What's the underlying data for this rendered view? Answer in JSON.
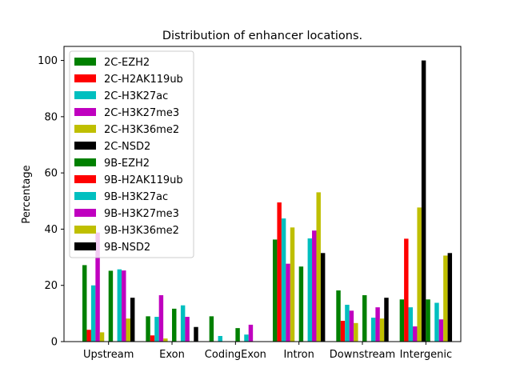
{
  "chart_data": {
    "type": "bar",
    "title": "Distribution of enhancer locations.",
    "xlabel": "",
    "ylabel": "Percentage",
    "ylim": [
      0,
      105
    ],
    "yticks": [
      0,
      20,
      40,
      60,
      80,
      100
    ],
    "categories": [
      "Upstream",
      "Exon",
      "CodingExon",
      "Intron",
      "Downstream",
      "Intergenic"
    ],
    "legend_position": "upper-left",
    "series": [
      {
        "name": "2C-EZH2",
        "color": "#008000",
        "values": [
          27.2,
          9.0,
          9.0,
          36.3,
          18.2,
          15.0
        ]
      },
      {
        "name": "2C-H2AK119ub",
        "color": "#ff0000",
        "values": [
          4.2,
          2.2,
          0,
          49.5,
          7.4,
          36.6
        ]
      },
      {
        "name": "2C-H3K27ac",
        "color": "#00bfbf",
        "values": [
          20.0,
          8.8,
          2.0,
          43.8,
          13.1,
          12.2
        ]
      },
      {
        "name": "2C-H3K27me3",
        "color": "#bf00bf",
        "values": [
          38.8,
          16.5,
          0,
          27.7,
          11.0,
          5.4
        ]
      },
      {
        "name": "2C-H3K36me2",
        "color": "#bfbf00",
        "values": [
          3.3,
          1.1,
          0,
          40.6,
          6.6,
          47.7
        ]
      },
      {
        "name": "2C-NSD2",
        "color": "#000000",
        "values": [
          0,
          0,
          0,
          0,
          0,
          100.0
        ]
      },
      {
        "name": "9B-EZH2",
        "color": "#008000",
        "values": [
          25.2,
          11.7,
          4.8,
          26.7,
          16.5,
          15.0
        ]
      },
      {
        "name": "9B-H2AK119ub",
        "color": "#ff0000",
        "values": [
          0,
          0,
          0,
          0,
          0,
          0
        ]
      },
      {
        "name": "9B-H3K27ac",
        "color": "#00bfbf",
        "values": [
          25.7,
          12.9,
          2.5,
          36.7,
          8.5,
          13.8
        ]
      },
      {
        "name": "9B-H3K27me3",
        "color": "#bf00bf",
        "values": [
          25.3,
          8.8,
          6.0,
          39.5,
          12.2,
          7.9
        ]
      },
      {
        "name": "9B-H3K36me2",
        "color": "#bfbf00",
        "values": [
          8.2,
          0,
          0,
          53.1,
          8.2,
          30.6
        ]
      },
      {
        "name": "9B-NSD2",
        "color": "#000000",
        "values": [
          15.6,
          5.2,
          0,
          31.5,
          15.6,
          31.5
        ]
      }
    ]
  }
}
